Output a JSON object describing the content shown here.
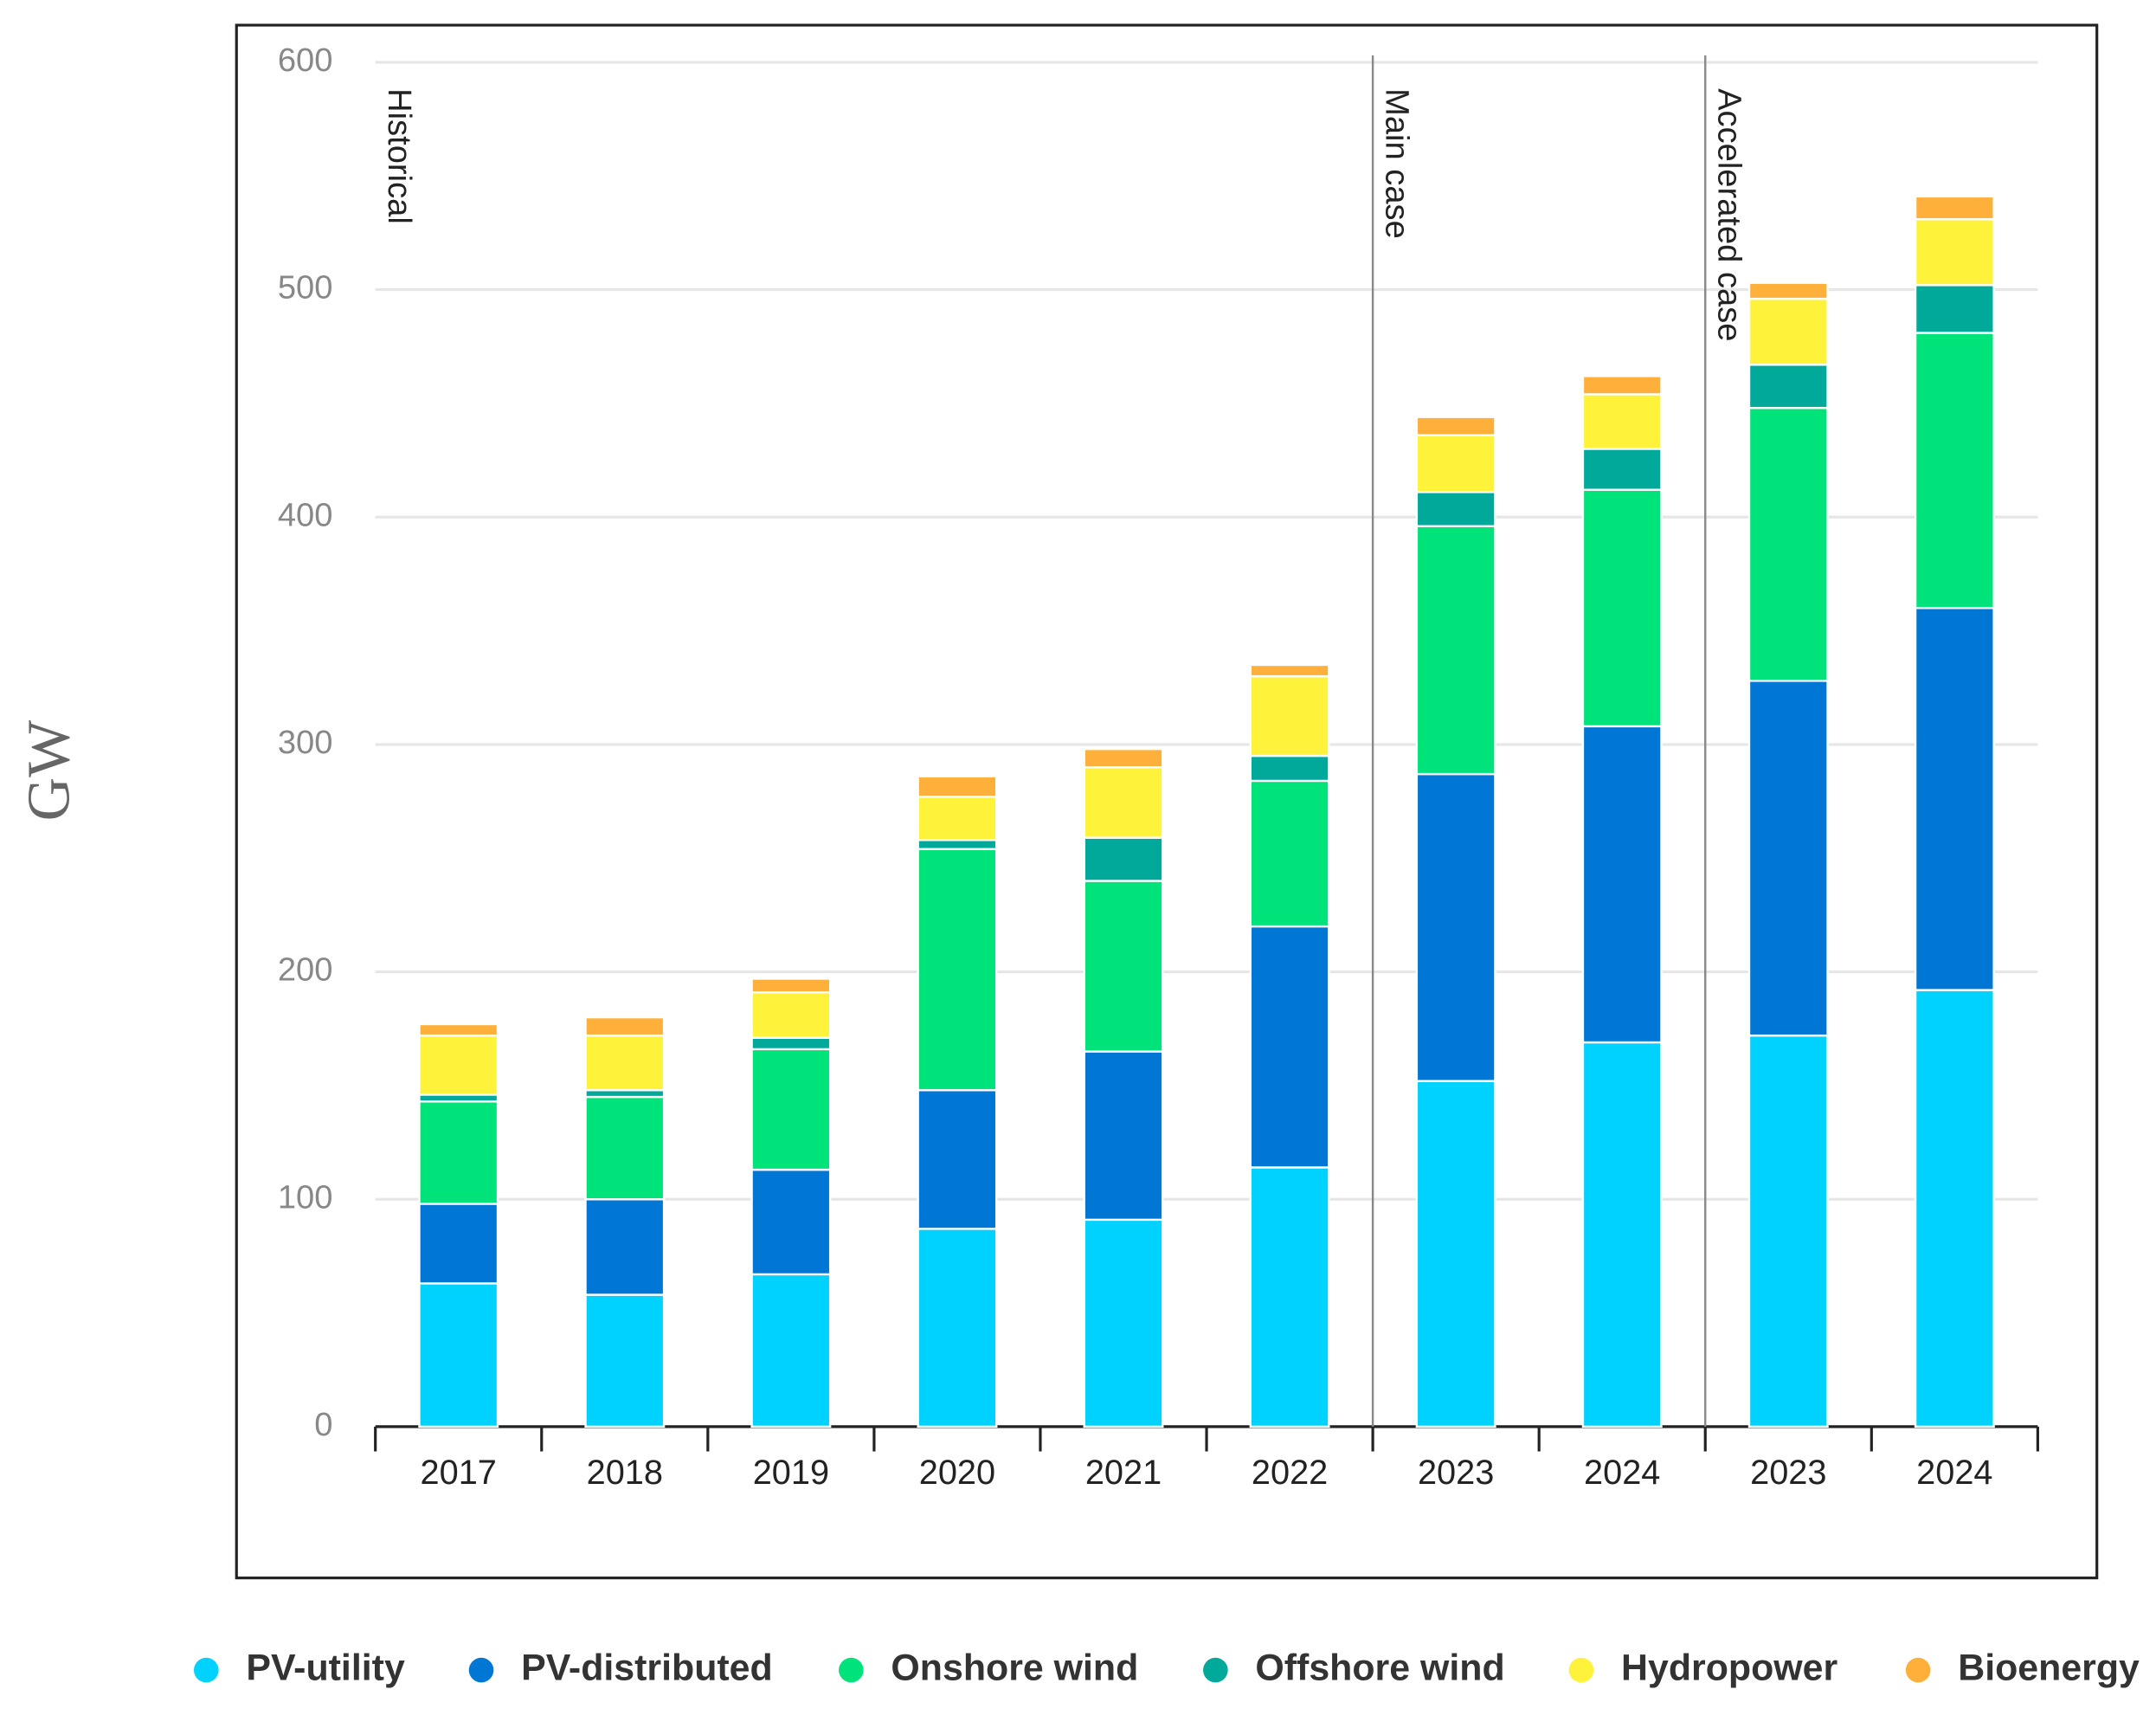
{
  "chart_data": {
    "type": "stacked-bar",
    "y_label": "GW",
    "categories": [
      "2017",
      "2018",
      "2019",
      "2020",
      "2021",
      "2022",
      "2023",
      "2024",
      "2023",
      "2024"
    ],
    "groups": [
      {
        "label": "Historical",
        "size": 6
      },
      {
        "label": "Main case",
        "size": 2
      },
      {
        "label": "Accelerated case",
        "size": 2
      }
    ],
    "series": [
      {
        "name": "PV-utility",
        "color": "#00d2ff",
        "values": [
          63,
          58,
          67,
          87,
          91,
          114,
          152,
          169,
          172,
          192
        ]
      },
      {
        "name": "PV-distributed",
        "color": "#0077d4",
        "values": [
          35,
          42,
          46,
          61,
          74,
          106,
          135,
          139,
          156,
          168
        ]
      },
      {
        "name": "Onshore wind",
        "color": "#00e27a",
        "values": [
          45,
          45,
          53,
          106,
          75,
          64,
          109,
          104,
          120,
          121
        ]
      },
      {
        "name": "Offshore wind",
        "color": "#00a99a",
        "values": [
          3,
          3,
          5,
          4,
          19,
          11,
          15,
          18,
          19,
          21
        ]
      },
      {
        "name": "Hydropower",
        "color": "#fff23a",
        "values": [
          26,
          24,
          20,
          19,
          31,
          35,
          25,
          24,
          29,
          29
        ]
      },
      {
        "name": "Bioenergy",
        "color": "#ffb03a",
        "values": [
          5,
          8,
          6,
          9,
          8,
          5,
          8,
          8,
          7,
          10
        ]
      }
    ],
    "ylim": [
      0,
      600
    ],
    "yticks": [
      0,
      100,
      200,
      300,
      400,
      500,
      600
    ],
    "grid": true
  }
}
